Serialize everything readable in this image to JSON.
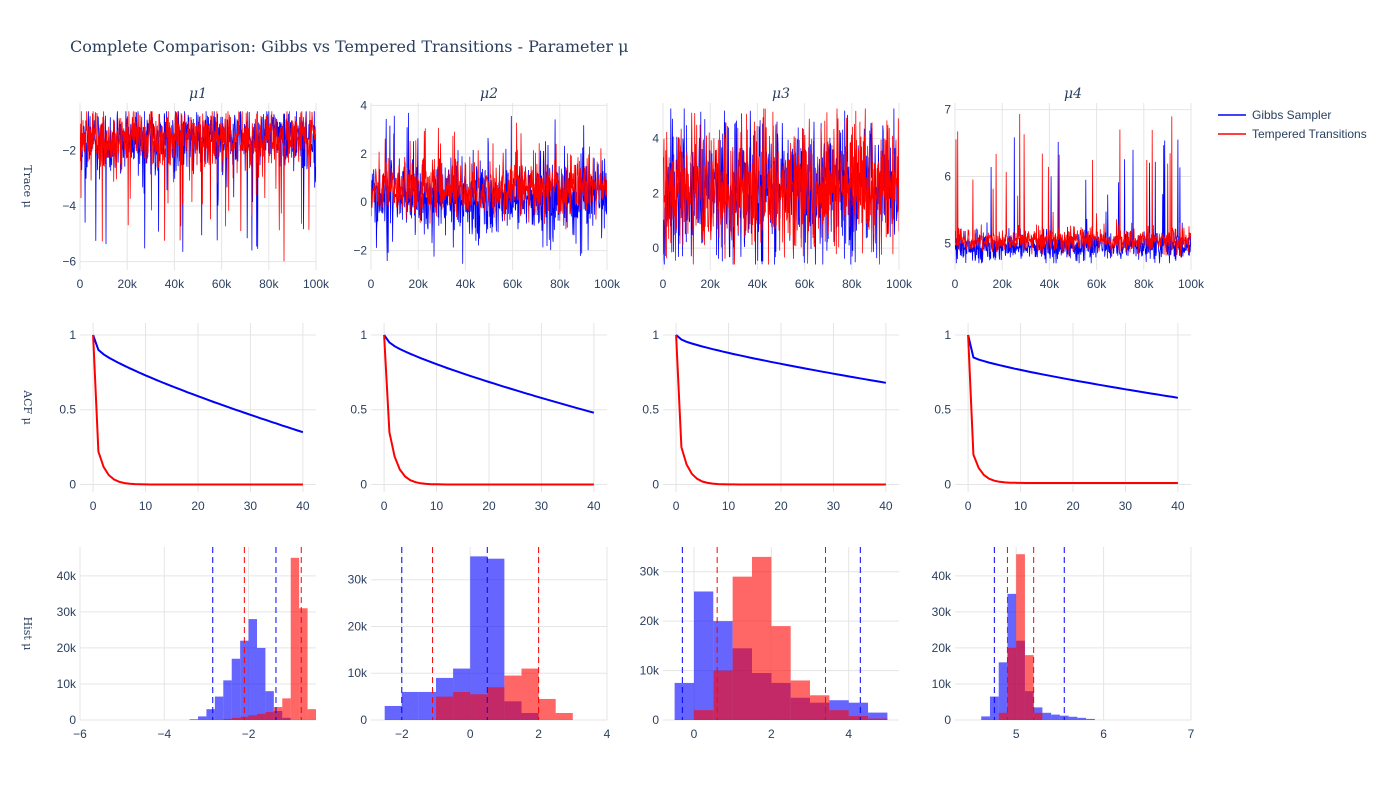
{
  "title": "Complete Comparison: Gibbs vs Tempered Transitions - Parameter μ",
  "row_labels": [
    "Trace μ",
    "ACF μ",
    "Hist μ"
  ],
  "legend": [
    {
      "name": "Gibbs Sampler",
      "color": "#0000ff"
    },
    {
      "name": "Tempered Transitions",
      "color": "#ff0000"
    }
  ],
  "colors": {
    "gibbs": "#0000ff",
    "tempered": "#ff0000",
    "grid": "#e5e5e5",
    "text": "#2a3f5f"
  },
  "chart_data": [
    {
      "type": "line",
      "row": "trace",
      "subplot_title": "μ1",
      "x_range": [
        0,
        100000
      ],
      "xticks": [
        0,
        20000,
        40000,
        60000,
        80000,
        100000
      ],
      "xtick_labels": [
        "0",
        "20k",
        "40k",
        "60k",
        "80k",
        "100k"
      ],
      "y_range": [
        -6.3,
        -0.3
      ],
      "yticks": [
        -6,
        -4,
        -2
      ],
      "ytick_labels": [
        "−6",
        "−4",
        "−2"
      ],
      "series": [
        {
          "name": "Gibbs Sampler",
          "center": -1.6,
          "spread": 0.9,
          "low": -5.8,
          "high": -0.6
        },
        {
          "name": "Tempered Transitions",
          "center": -1.6,
          "spread": 0.9,
          "low": -6.0,
          "high": -0.6
        }
      ]
    },
    {
      "type": "line",
      "row": "trace",
      "subplot_title": "μ2",
      "x_range": [
        0,
        100000
      ],
      "xticks": [
        0,
        20000,
        40000,
        60000,
        80000,
        100000
      ],
      "xtick_labels": [
        "0",
        "20k",
        "40k",
        "60k",
        "80k",
        "100k"
      ],
      "y_range": [
        -2.8,
        4.1
      ],
      "yticks": [
        -2,
        0,
        2,
        4
      ],
      "ytick_labels": [
        "−2",
        "0",
        "2",
        "4"
      ],
      "series": [
        {
          "name": "Gibbs Sampler",
          "center": 0.2,
          "spread": 1.3,
          "low": -2.6,
          "high": 3.8
        },
        {
          "name": "Tempered Transitions",
          "center": 0.6,
          "spread": 1.0,
          "low": -1.3,
          "high": 3.3
        }
      ]
    },
    {
      "type": "line",
      "row": "trace",
      "subplot_title": "μ3",
      "x_range": [
        0,
        100000
      ],
      "xticks": [
        0,
        20000,
        40000,
        60000,
        80000,
        100000
      ],
      "xtick_labels": [
        "0",
        "20k",
        "40k",
        "60k",
        "80k",
        "100k"
      ],
      "y_range": [
        -0.8,
        5.3
      ],
      "yticks": [
        0,
        2,
        4
      ],
      "ytick_labels": [
        "0",
        "2",
        "4"
      ],
      "series": [
        {
          "name": "Gibbs Sampler",
          "center": 2.2,
          "spread": 2.0,
          "low": -0.6,
          "high": 5.1
        },
        {
          "name": "Tempered Transitions",
          "center": 2.2,
          "spread": 2.0,
          "low": -0.6,
          "high": 5.1
        }
      ]
    },
    {
      "type": "line",
      "row": "trace",
      "subplot_title": "μ4",
      "x_range": [
        0,
        100000
      ],
      "xticks": [
        0,
        20000,
        40000,
        60000,
        80000,
        100000
      ],
      "xtick_labels": [
        "0",
        "20k",
        "40k",
        "60k",
        "80k",
        "100k"
      ],
      "y_range": [
        4.6,
        7.1
      ],
      "yticks": [
        5,
        6,
        7
      ],
      "ytick_labels": [
        "5",
        "6",
        "7"
      ],
      "series": [
        {
          "name": "Gibbs Sampler",
          "center": 4.95,
          "spread": 0.18,
          "low": 4.7,
          "high": 6.7
        },
        {
          "name": "Tempered Transitions",
          "center": 5.05,
          "spread": 0.15,
          "low": 4.8,
          "high": 6.95
        }
      ]
    },
    {
      "type": "line",
      "row": "acf",
      "x_range": [
        -2.5,
        42.5
      ],
      "xticks": [
        0,
        10,
        20,
        30,
        40
      ],
      "xtick_labels": [
        "0",
        "10",
        "20",
        "30",
        "40"
      ],
      "y_range": [
        -0.05,
        1.08
      ],
      "yticks": [
        0,
        0.5,
        1
      ],
      "ytick_labels": [
        "0",
        "0.5",
        "1"
      ],
      "series": [
        {
          "name": "Gibbs Sampler",
          "lag0": 1,
          "lag1": 0.9,
          "lag40": 0.35
        },
        {
          "name": "Tempered Transitions",
          "lag0": 1,
          "lag1": 0.22,
          "lag40": 0.0
        }
      ]
    },
    {
      "type": "line",
      "row": "acf",
      "x_range": [
        -2.5,
        42.5
      ],
      "xticks": [
        0,
        10,
        20,
        30,
        40
      ],
      "xtick_labels": [
        "0",
        "10",
        "20",
        "30",
        "40"
      ],
      "y_range": [
        -0.05,
        1.08
      ],
      "yticks": [
        0,
        0.5,
        1
      ],
      "ytick_labels": [
        "0",
        "0.5",
        "1"
      ],
      "series": [
        {
          "name": "Gibbs Sampler",
          "lag0": 1,
          "lag1": 0.95,
          "lag40": 0.48
        },
        {
          "name": "Tempered Transitions",
          "lag0": 1,
          "lag1": 0.35,
          "lag40": 0.0
        }
      ]
    },
    {
      "type": "line",
      "row": "acf",
      "x_range": [
        -2.5,
        42.5
      ],
      "xticks": [
        0,
        10,
        20,
        30,
        40
      ],
      "xtick_labels": [
        "0",
        "10",
        "20",
        "30",
        "40"
      ],
      "y_range": [
        -0.05,
        1.08
      ],
      "yticks": [
        0,
        0.5,
        1
      ],
      "ytick_labels": [
        "0",
        "0.5",
        "1"
      ],
      "series": [
        {
          "name": "Gibbs Sampler",
          "lag0": 1,
          "lag1": 0.97,
          "lag40": 0.68
        },
        {
          "name": "Tempered Transitions",
          "lag0": 1,
          "lag1": 0.25,
          "lag40": 0.0
        }
      ]
    },
    {
      "type": "line",
      "row": "acf",
      "x_range": [
        -2.5,
        42.5
      ],
      "xticks": [
        0,
        10,
        20,
        30,
        40
      ],
      "xtick_labels": [
        "0",
        "10",
        "20",
        "30",
        "40"
      ],
      "y_range": [
        -0.05,
        1.08
      ],
      "yticks": [
        0,
        0.5,
        1
      ],
      "ytick_labels": [
        "0",
        "0.5",
        "1"
      ],
      "series": [
        {
          "name": "Gibbs Sampler",
          "lag0": 1,
          "lag1": 0.85,
          "lag40": 0.58
        },
        {
          "name": "Tempered Transitions",
          "lag0": 1,
          "lag1": 0.2,
          "lag40": 0.01
        }
      ]
    },
    {
      "type": "bar",
      "row": "hist",
      "x_range": [
        -6,
        -0.4
      ],
      "xticks": [
        -6,
        -4,
        -2
      ],
      "xtick_labels": [
        "−6",
        "−4",
        "−2"
      ],
      "y_range": [
        0,
        48000
      ],
      "yticks": [
        0,
        10000,
        20000,
        30000,
        40000
      ],
      "ytick_labels": [
        "0",
        "10k",
        "20k",
        "30k",
        "40k"
      ],
      "bin_width": 0.2,
      "series": [
        {
          "name": "Gibbs Sampler",
          "bins": [
            [
              -3.4,
              200
            ],
            [
              -3.2,
              1000
            ],
            [
              -3.0,
              3000
            ],
            [
              -2.8,
              6500
            ],
            [
              -2.6,
              11000
            ],
            [
              -2.4,
              17000
            ],
            [
              -2.2,
              22000
            ],
            [
              -2.0,
              28000
            ],
            [
              -1.8,
              20000
            ],
            [
              -1.6,
              8000
            ],
            [
              -1.4,
              2500
            ],
            [
              -1.2,
              600
            ]
          ],
          "vlines": [
            -2.85,
            -1.35
          ]
        },
        {
          "name": "Tempered Transitions",
          "bins": [
            [
              -2.6,
              300
            ],
            [
              -2.4,
              600
            ],
            [
              -2.2,
              900
            ],
            [
              -2.0,
              1300
            ],
            [
              -1.8,
              1700
            ],
            [
              -1.6,
              2200
            ],
            [
              -1.4,
              3600
            ],
            [
              -1.2,
              6000
            ],
            [
              -1.0,
              45000
            ],
            [
              -0.8,
              31000
            ],
            [
              -0.6,
              3000
            ]
          ],
          "vlines": [
            -2.1,
            -0.75
          ]
        }
      ]
    },
    {
      "type": "bar",
      "row": "hist",
      "x_range": [
        -2.9,
        4.0
      ],
      "xticks": [
        -2,
        0,
        2,
        4
      ],
      "xtick_labels": [
        "−2",
        "0",
        "2",
        "4"
      ],
      "y_range": [
        0,
        37000
      ],
      "yticks": [
        0,
        10000,
        20000,
        30000
      ],
      "ytick_labels": [
        "0",
        "10k",
        "20k",
        "30k"
      ],
      "bin_width": 0.5,
      "series": [
        {
          "name": "Gibbs Sampler",
          "bins": [
            [
              -2.5,
              3000
            ],
            [
              -2.0,
              6000
            ],
            [
              -1.5,
              6000
            ],
            [
              -1.0,
              9000
            ],
            [
              -0.5,
              11000
            ],
            [
              0.0,
              35000
            ],
            [
              0.5,
              34500
            ],
            [
              1.0,
              4000
            ],
            [
              1.5,
              1500
            ]
          ],
          "vlines": [
            -2.0,
            0.5
          ]
        },
        {
          "name": "Tempered Transitions",
          "bins": [
            [
              -1.0,
              5000
            ],
            [
              -0.5,
              6000
            ],
            [
              0.0,
              5500
            ],
            [
              0.5,
              7000
            ],
            [
              1.0,
              9500
            ],
            [
              1.5,
              11000
            ],
            [
              2.0,
              4500
            ],
            [
              2.5,
              1500
            ]
          ],
          "vlines": [
            -1.1,
            2.0
          ]
        }
      ]
    },
    {
      "type": "bar",
      "row": "hist",
      "x_range": [
        -0.8,
        5.3
      ],
      "xticks": [
        0,
        2,
        4
      ],
      "xtick_labels": [
        "0",
        "2",
        "4"
      ],
      "y_range": [
        0,
        35000
      ],
      "yticks": [
        0,
        10000,
        20000,
        30000
      ],
      "ytick_labels": [
        "0",
        "10k",
        "20k",
        "30k"
      ],
      "bin_width": 0.5,
      "series": [
        {
          "name": "Gibbs Sampler",
          "bins": [
            [
              -0.5,
              7500
            ],
            [
              0.0,
              26000
            ],
            [
              0.5,
              20000
            ],
            [
              1.0,
              14500
            ],
            [
              1.5,
              9500
            ],
            [
              2.0,
              7500
            ],
            [
              2.5,
              4500
            ],
            [
              3.0,
              3500
            ],
            [
              3.5,
              4000
            ],
            [
              4.0,
              3500
            ],
            [
              4.5,
              1500
            ]
          ],
          "vlines": [
            -0.3,
            4.3
          ]
        },
        {
          "name": "Tempered Transitions",
          "bins": [
            [
              0.0,
              2000
            ],
            [
              0.5,
              10000
            ],
            [
              1.0,
              29000
            ],
            [
              1.5,
              33000
            ],
            [
              2.0,
              19000
            ],
            [
              2.5,
              8000
            ],
            [
              3.0,
              5000
            ],
            [
              3.5,
              2000
            ],
            [
              4.0,
              800
            ],
            [
              4.5,
              300
            ]
          ],
          "vlines": [
            0.6,
            3.4
          ]
        }
      ]
    },
    {
      "type": "bar",
      "row": "hist",
      "x_range": [
        4.3,
        7.0
      ],
      "xticks": [
        5,
        6,
        7
      ],
      "xtick_labels": [
        "5",
        "6",
        "7"
      ],
      "y_range": [
        0,
        48000
      ],
      "yticks": [
        0,
        10000,
        20000,
        30000,
        40000
      ],
      "ytick_labels": [
        "0",
        "10k",
        "20k",
        "30k",
        "40k"
      ],
      "bin_width": 0.1,
      "series": [
        {
          "name": "Gibbs Sampler",
          "bins": [
            [
              4.6,
              1000
            ],
            [
              4.7,
              6500
            ],
            [
              4.8,
              16000
            ],
            [
              4.9,
              35000
            ],
            [
              5.0,
              22000
            ],
            [
              5.1,
              8000
            ],
            [
              5.2,
              3500
            ],
            [
              5.3,
              2000
            ],
            [
              5.4,
              1500
            ],
            [
              5.5,
              1200
            ],
            [
              5.6,
              900
            ],
            [
              5.7,
              600
            ],
            [
              5.8,
              300
            ]
          ],
          "vlines": [
            4.75,
            5.55
          ]
        },
        {
          "name": "Tempered Transitions",
          "bins": [
            [
              4.8,
              2000
            ],
            [
              4.9,
              20000
            ],
            [
              5.0,
              46000
            ],
            [
              5.1,
              18000
            ],
            [
              5.2,
              2000
            ]
          ],
          "vlines": [
            4.9,
            5.2
          ]
        }
      ]
    }
  ]
}
